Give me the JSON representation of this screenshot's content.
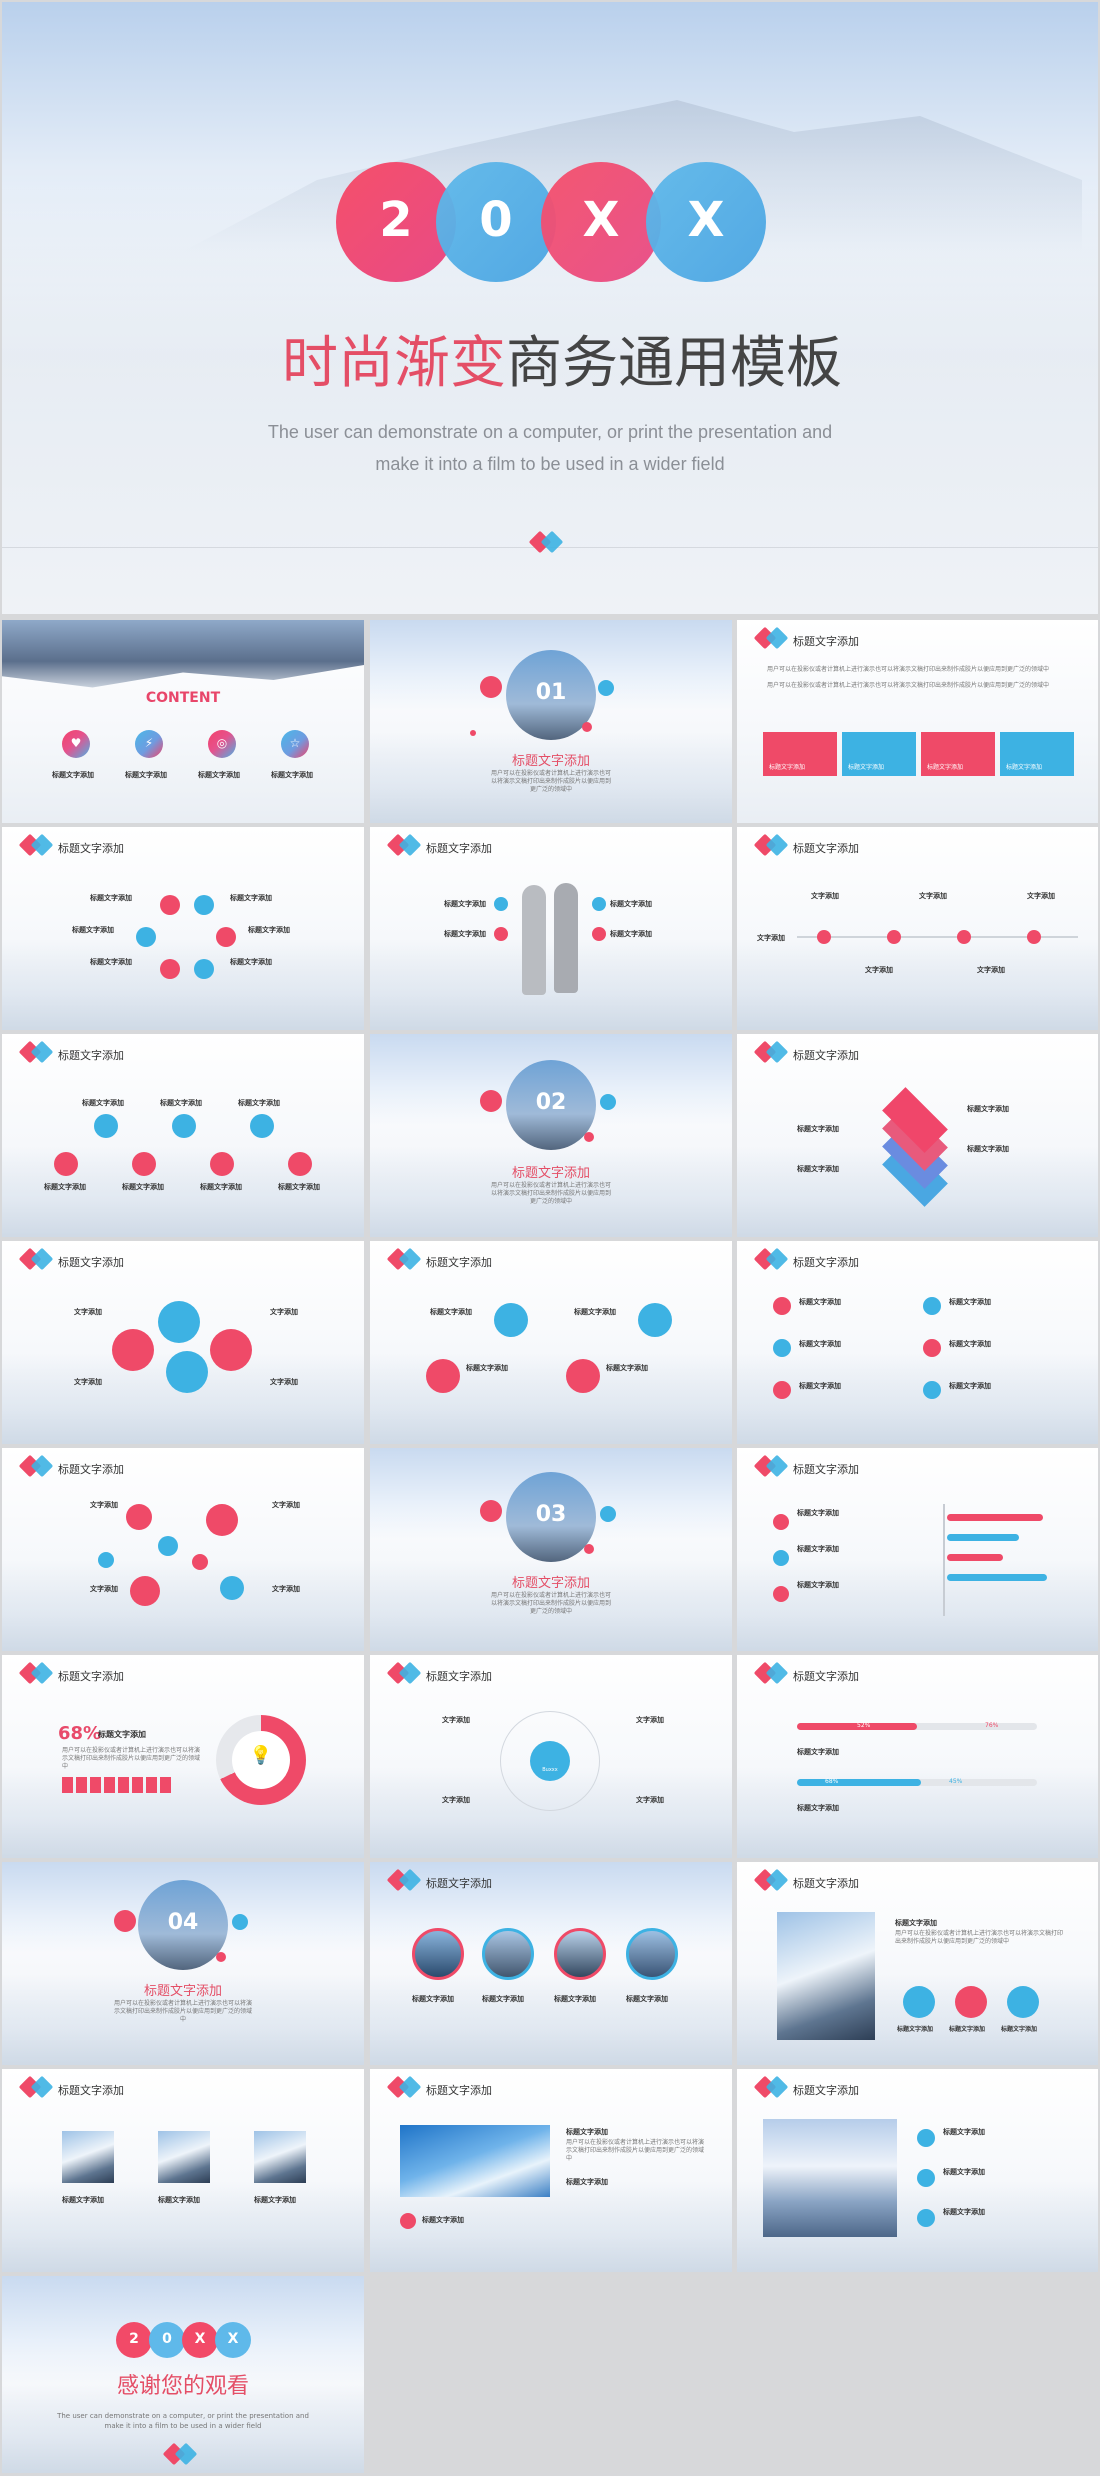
{
  "hero": {
    "badge": [
      "2",
      "0",
      "X",
      "X"
    ],
    "title_accent": "时尚渐变",
    "title_rest": "商务通用模板",
    "subtitle_line1": "The user can demonstrate on a computer, or print the presentation and",
    "subtitle_line2": "make it into a film to be used in a wider field"
  },
  "common": {
    "slide_title": "标题文字添加",
    "section_title": "标题文字添加",
    "heading": "标题文字添加",
    "text_label": "文字添加",
    "para": "用户可以在投影仪或者计算机上进行演示也可以将演示文稿打印出来制作成胶片以便应用到更广泛的领域中"
  },
  "content_slide": {
    "title": "CONTENT",
    "items": [
      "标题文字添加",
      "标题文字添加",
      "标题文字添加",
      "标题文字添加"
    ]
  },
  "sections": [
    "01",
    "02",
    "03",
    "04"
  ],
  "stat_slide": {
    "percent": "68%"
  },
  "center_label": "Buxxx",
  "progress_slide": {
    "bars": [
      "52%",
      "76%",
      "68%",
      "45%"
    ]
  },
  "closing": {
    "badge": [
      "2",
      "0",
      "X",
      "X"
    ],
    "title": "感谢您的观看",
    "subtitle_line1": "The user can demonstrate on a computer, or print the presentation and",
    "subtitle_line2": "make it into a film to be used in a wider field"
  },
  "colors": {
    "accent_red": "#ef4a68",
    "accent_blue": "#3db2e3"
  }
}
